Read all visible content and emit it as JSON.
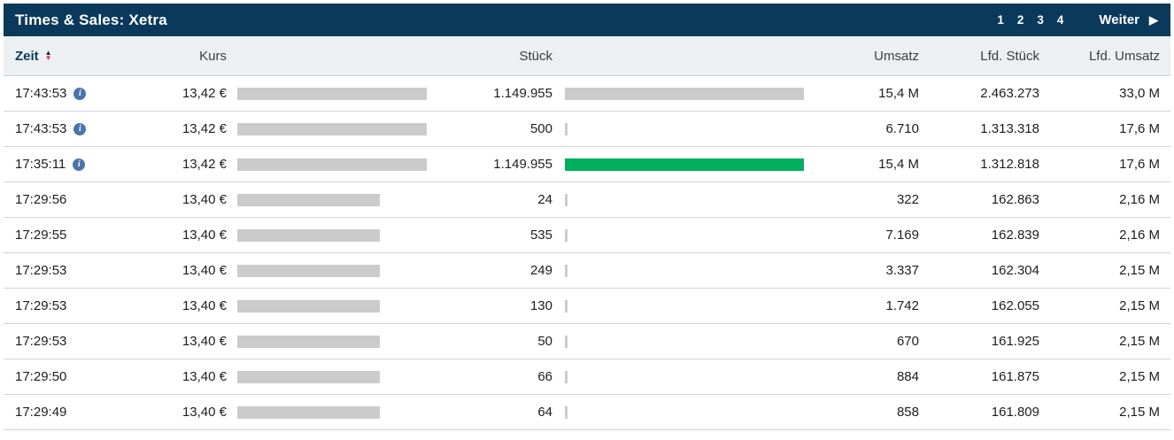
{
  "header": {
    "title": "Times & Sales: Xetra",
    "pages": [
      "1",
      "2",
      "3",
      "4"
    ],
    "next_label": "Weiter"
  },
  "icons": {
    "info_glyph": "i",
    "sort_up_glyph": "▲",
    "sort_down_glyph": "▼",
    "next_arrow_glyph": "▶"
  },
  "colors": {
    "titlebar_bg": "#0a395b",
    "header_row_bg": "#ecf0f3",
    "bar_gray": "#cbcbcb",
    "bar_green": "#00af5e",
    "info_icon_blue": "#4a74ab",
    "sort_down_red": "#e2335c",
    "row_separator": "#ccd6de"
  },
  "table": {
    "columns": [
      {
        "key": "zeit",
        "label": "Zeit",
        "sortable": true
      },
      {
        "key": "kurs",
        "label": "Kurs"
      },
      {
        "key": "stueck",
        "label": "Stück"
      },
      {
        "key": "umsatz",
        "label": "Umsatz"
      },
      {
        "key": "lfd_stueck",
        "label": "Lfd. Stück"
      },
      {
        "key": "lfd_umsatz",
        "label": "Lfd. Umsatz"
      }
    ],
    "rows": [
      {
        "zeit": "17:43:53",
        "has_info": true,
        "kurs": "13,42 €",
        "kurs_bar_pct": 100,
        "stueck": "1.149.955",
        "stueck_bar_pct": 100,
        "stueck_bar_color": "gray",
        "umsatz": "15,4 M",
        "lfd_stueck": "2.463.273",
        "lfd_umsatz": "33,0 M"
      },
      {
        "zeit": "17:43:53",
        "has_info": true,
        "kurs": "13,42 €",
        "kurs_bar_pct": 100,
        "stueck": "500",
        "stueck_bar_pct": 1,
        "stueck_bar_color": "gray",
        "umsatz": "6.710",
        "lfd_stueck": "1.313.318",
        "lfd_umsatz": "17,6 M"
      },
      {
        "zeit": "17:35:11",
        "has_info": true,
        "kurs": "13,42 €",
        "kurs_bar_pct": 100,
        "stueck": "1.149.955",
        "stueck_bar_pct": 100,
        "stueck_bar_color": "green",
        "umsatz": "15,4 M",
        "lfd_stueck": "1.312.818",
        "lfd_umsatz": "17,6 M"
      },
      {
        "zeit": "17:29:56",
        "has_info": false,
        "kurs": "13,40 €",
        "kurs_bar_pct": 75,
        "stueck": "24",
        "stueck_bar_pct": 1,
        "stueck_bar_color": "gray",
        "umsatz": "322",
        "lfd_stueck": "162.863",
        "lfd_umsatz": "2,16 M"
      },
      {
        "zeit": "17:29:55",
        "has_info": false,
        "kurs": "13,40 €",
        "kurs_bar_pct": 75,
        "stueck": "535",
        "stueck_bar_pct": 1,
        "stueck_bar_color": "gray",
        "umsatz": "7.169",
        "lfd_stueck": "162.839",
        "lfd_umsatz": "2,16 M"
      },
      {
        "zeit": "17:29:53",
        "has_info": false,
        "kurs": "13,40 €",
        "kurs_bar_pct": 75,
        "stueck": "249",
        "stueck_bar_pct": 1,
        "stueck_bar_color": "gray",
        "umsatz": "3.337",
        "lfd_stueck": "162.304",
        "lfd_umsatz": "2,15 M"
      },
      {
        "zeit": "17:29:53",
        "has_info": false,
        "kurs": "13,40 €",
        "kurs_bar_pct": 75,
        "stueck": "130",
        "stueck_bar_pct": 1,
        "stueck_bar_color": "gray",
        "umsatz": "1.742",
        "lfd_stueck": "162.055",
        "lfd_umsatz": "2,15 M"
      },
      {
        "zeit": "17:29:53",
        "has_info": false,
        "kurs": "13,40 €",
        "kurs_bar_pct": 75,
        "stueck": "50",
        "stueck_bar_pct": 1,
        "stueck_bar_color": "gray",
        "umsatz": "670",
        "lfd_stueck": "161.925",
        "lfd_umsatz": "2,15 M"
      },
      {
        "zeit": "17:29:50",
        "has_info": false,
        "kurs": "13,40 €",
        "kurs_bar_pct": 75,
        "stueck": "66",
        "stueck_bar_pct": 1,
        "stueck_bar_color": "gray",
        "umsatz": "884",
        "lfd_stueck": "161.875",
        "lfd_umsatz": "2,15 M"
      },
      {
        "zeit": "17:29:49",
        "has_info": false,
        "kurs": "13,40 €",
        "kurs_bar_pct": 75,
        "stueck": "64",
        "stueck_bar_pct": 1,
        "stueck_bar_color": "gray",
        "umsatz": "858",
        "lfd_stueck": "161.809",
        "lfd_umsatz": "2,15 M"
      }
    ]
  }
}
